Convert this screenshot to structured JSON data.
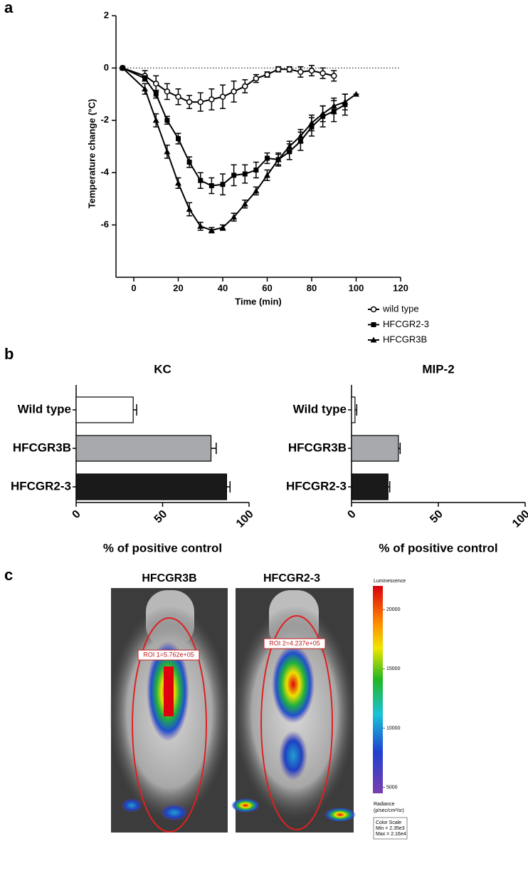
{
  "panel_labels": [
    "a",
    "b",
    "c"
  ],
  "chart_data": [
    {
      "type": "line",
      "ylabel": "Temperature change (°C)",
      "xlabel": "Time (min)",
      "xlim": [
        -8,
        120
      ],
      "xticks": [
        0,
        20,
        40,
        60,
        80,
        100,
        120
      ],
      "ylim": [
        -8,
        2
      ],
      "yticks": [
        -6,
        -4,
        -2,
        0,
        2
      ],
      "hline": 0,
      "series": [
        {
          "name": "wild type",
          "marker": "circle-open",
          "color": "#000000",
          "x": [
            -5,
            5,
            10,
            15,
            20,
            25,
            30,
            35,
            40,
            45,
            50,
            55,
            60,
            65,
            70,
            75,
            80,
            85,
            90
          ],
          "values": [
            0,
            -0.3,
            -0.6,
            -0.9,
            -1.1,
            -1.3,
            -1.3,
            -1.2,
            -1.1,
            -0.9,
            -0.7,
            -0.4,
            -0.25,
            -0.05,
            -0.05,
            -0.15,
            -0.1,
            -0.2,
            -0.3
          ],
          "errors": [
            0,
            0.2,
            0.3,
            0.3,
            0.3,
            0.25,
            0.35,
            0.4,
            0.45,
            0.4,
            0.25,
            0.15,
            0.1,
            0.1,
            0.1,
            0.2,
            0.2,
            0.2,
            0.2
          ]
        },
        {
          "name": "HFCGR2-3",
          "marker": "square",
          "color": "#000000",
          "x": [
            -5,
            5,
            10,
            15,
            20,
            25,
            30,
            35,
            40,
            45,
            50,
            55,
            60,
            65,
            70,
            75,
            80,
            85,
            90,
            95
          ],
          "values": [
            0,
            -0.4,
            -1.0,
            -2.0,
            -2.7,
            -3.6,
            -4.3,
            -4.5,
            -4.45,
            -4.1,
            -4.05,
            -3.9,
            -3.45,
            -3.5,
            -3.2,
            -2.8,
            -2.25,
            -1.85,
            -1.65,
            -1.4
          ],
          "errors": [
            0,
            0.1,
            0.15,
            0.15,
            0.2,
            0.2,
            0.3,
            0.3,
            0.4,
            0.4,
            0.35,
            0.3,
            0.2,
            0.25,
            0.3,
            0.35,
            0.35,
            0.4,
            0.4,
            0.4
          ]
        },
        {
          "name": "HFCGR3B",
          "marker": "triangle",
          "color": "#000000",
          "x": [
            -5,
            5,
            10,
            15,
            20,
            25,
            30,
            35,
            40,
            45,
            50,
            55,
            60,
            65,
            70,
            75,
            80,
            85,
            90,
            95,
            100
          ],
          "values": [
            0,
            -0.8,
            -2.0,
            -3.2,
            -4.4,
            -5.4,
            -6.05,
            -6.2,
            -6.1,
            -5.7,
            -5.2,
            -4.7,
            -4.1,
            -3.5,
            -3.0,
            -2.6,
            -2.1,
            -1.75,
            -1.45,
            -1.3,
            -1.0
          ],
          "errors": [
            0,
            0.2,
            0.25,
            0.25,
            0.2,
            0.25,
            0.15,
            0.1,
            0.1,
            0.15,
            0.15,
            0.15,
            0.2,
            0.2,
            0.2,
            0.25,
            0.3,
            0.3,
            0.3,
            0.3,
            0
          ]
        }
      ]
    },
    {
      "type": "hbar",
      "title": "KC",
      "xlabel": "% of positive control",
      "categories": [
        "Wild type",
        "HFCGR3B",
        "HFCGR2-3"
      ],
      "values": [
        33,
        78,
        87
      ],
      "errors": [
        2,
        3,
        2
      ],
      "colors": [
        "#ffffff",
        "#a7a9ac",
        "#1a1a1a"
      ],
      "xlim": [
        0,
        100
      ],
      "xticks": [
        0,
        50,
        100
      ]
    },
    {
      "type": "hbar",
      "title": "MIP-2",
      "xlabel": "% of positive control",
      "categories": [
        "Wild type",
        "HFCGR3B",
        "HFCGR2-3"
      ],
      "values": [
        2,
        27,
        21
      ],
      "errors": [
        1,
        1,
        1
      ],
      "colors": [
        "#ffffff",
        "#a7a9ac",
        "#1a1a1a"
      ],
      "xlim": [
        0,
        100
      ],
      "xticks": [
        0,
        50,
        100
      ]
    }
  ],
  "image_panel": {
    "titles": [
      "HFCGR3B",
      "HFCGR2-3"
    ],
    "roi_labels": [
      "ROI 1=5.762e+05",
      "ROI 2=4.237e+05"
    ],
    "colorbar": {
      "title": "Luminescence",
      "lim": [
        4500,
        22000
      ],
      "ticks": [
        5000,
        10000,
        15000,
        20000
      ],
      "unit_label": "Radiance",
      "unit": "(p/sec/cm²/sr)",
      "scale_box": [
        "Color Scale",
        "Min = 2.35e3",
        "Max = 2.16e4"
      ]
    }
  }
}
